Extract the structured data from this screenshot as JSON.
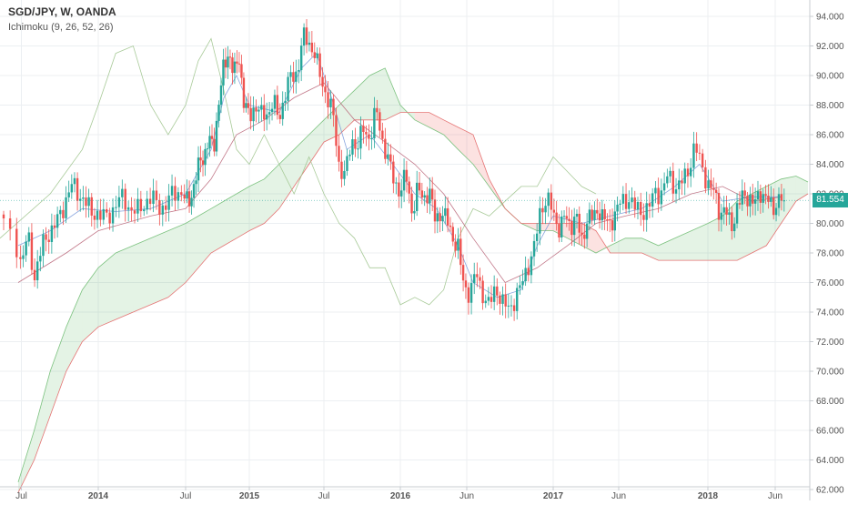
{
  "chart_data": {
    "type": "candlestick",
    "symbol": "SGD/JPY, W, OANDA",
    "indicator": "Ichimoku (9, 26, 52, 26)",
    "last_price": "81.554",
    "y_axis": {
      "range": [
        61.5,
        94.5
      ],
      "ticks": [
        "62.000",
        "64.000",
        "66.000",
        "68.000",
        "70.000",
        "72.000",
        "74.000",
        "76.000",
        "78.000",
        "80.000",
        "82.000",
        "84.000",
        "86.000",
        "88.000",
        "90.000",
        "92.000",
        "94.000"
      ]
    },
    "x_axis": {
      "labels": [
        "Jul",
        "2014",
        "Jul",
        "2015",
        "Jul",
        "2016",
        "Jun",
        "2017",
        "Jun",
        "2018",
        "Jun"
      ],
      "bold_labels": [
        "2014",
        "2015",
        "2016",
        "2017",
        "2018"
      ]
    },
    "close_path": [
      [
        2013.48,
        79.0
      ],
      [
        2013.52,
        77.0
      ],
      [
        2013.56,
        79.5
      ],
      [
        2013.6,
        76.5
      ],
      [
        2013.66,
        78.5
      ],
      [
        2013.72,
        80.0
      ],
      [
        2013.78,
        81.0
      ],
      [
        2013.84,
        82.5
      ],
      [
        2013.9,
        82.0
      ],
      [
        2013.96,
        80.5
      ],
      [
        2014.02,
        80.5
      ],
      [
        2014.08,
        81.0
      ],
      [
        2014.14,
        81.5
      ],
      [
        2014.2,
        81.0
      ],
      [
        2014.26,
        81.2
      ],
      [
        2014.32,
        81.5
      ],
      [
        2014.38,
        81.3
      ],
      [
        2014.42,
        81.8
      ],
      [
        2014.48,
        82.0
      ],
      [
        2014.52,
        81.5
      ],
      [
        2014.58,
        83.0
      ],
      [
        2014.64,
        84.5
      ],
      [
        2014.68,
        86.0
      ],
      [
        2014.72,
        85.0
      ],
      [
        2014.76,
        88.0
      ],
      [
        2014.8,
        90.5
      ],
      [
        2014.84,
        92.0
      ],
      [
        2014.88,
        90.0
      ],
      [
        2014.92,
        91.0
      ],
      [
        2014.96,
        88.0
      ],
      [
        2015.0,
        87.5
      ],
      [
        2015.04,
        88.0
      ],
      [
        2015.08,
        87.0
      ],
      [
        2015.12,
        87.5
      ],
      [
        2015.16,
        88.5
      ],
      [
        2015.2,
        87.0
      ],
      [
        2015.24,
        88.5
      ],
      [
        2015.28,
        90.0
      ],
      [
        2015.32,
        90.5
      ],
      [
        2015.36,
        92.5
      ],
      [
        2015.4,
        92.0
      ],
      [
        2015.44,
        91.5
      ],
      [
        2015.48,
        90.0
      ],
      [
        2015.52,
        88.5
      ],
      [
        2015.56,
        87.0
      ],
      [
        2015.6,
        84.0
      ],
      [
        2015.64,
        83.5
      ],
      [
        2015.68,
        85.5
      ],
      [
        2015.72,
        85.0
      ],
      [
        2015.76,
        86.5
      ],
      [
        2015.8,
        86.0
      ],
      [
        2015.84,
        87.5
      ],
      [
        2015.88,
        85.5
      ],
      [
        2015.92,
        84.5
      ],
      [
        2015.96,
        83.0
      ],
      [
        2016.0,
        82.0
      ],
      [
        2016.04,
        83.0
      ],
      [
        2016.08,
        81.0
      ],
      [
        2016.12,
        82.5
      ],
      [
        2016.16,
        81.5
      ],
      [
        2016.2,
        82.0
      ],
      [
        2016.24,
        80.5
      ],
      [
        2016.28,
        81.0
      ],
      [
        2016.32,
        80.0
      ],
      [
        2016.36,
        79.0
      ],
      [
        2016.4,
        78.5
      ],
      [
        2016.44,
        76.0
      ],
      [
        2016.48,
        75.0
      ],
      [
        2016.52,
        76.5
      ],
      [
        2016.56,
        75.5
      ],
      [
        2016.6,
        74.5
      ],
      [
        2016.64,
        75.5
      ],
      [
        2016.68,
        74.5
      ],
      [
        2016.72,
        74.5
      ],
      [
        2016.76,
        75.0
      ],
      [
        2016.8,
        75.5
      ],
      [
        2016.84,
        77.0
      ],
      [
        2016.88,
        78.5
      ],
      [
        2016.92,
        81.0
      ],
      [
        2016.96,
        81.5
      ],
      [
        2017.0,
        80.5
      ],
      [
        2017.04,
        80.0
      ],
      [
        2017.08,
        80.5
      ],
      [
        2017.12,
        79.5
      ],
      [
        2017.16,
        80.5
      ],
      [
        2017.2,
        79.0
      ],
      [
        2017.24,
        80.5
      ],
      [
        2017.28,
        80.0
      ],
      [
        2017.32,
        81.0
      ],
      [
        2017.36,
        80.5
      ],
      [
        2017.4,
        80.0
      ],
      [
        2017.44,
        80.5
      ],
      [
        2017.48,
        81.5
      ],
      [
        2017.52,
        82.0
      ],
      [
        2017.56,
        81.0
      ],
      [
        2017.6,
        80.5
      ],
      [
        2017.64,
        81.0
      ],
      [
        2017.68,
        82.5
      ],
      [
        2017.72,
        82.0
      ],
      [
        2017.76,
        83.0
      ],
      [
        2017.8,
        82.5
      ],
      [
        2017.84,
        83.0
      ],
      [
        2017.88,
        83.5
      ],
      [
        2017.92,
        85.0
      ],
      [
        2017.96,
        84.0
      ],
      [
        2018.0,
        83.0
      ],
      [
        2018.04,
        82.0
      ],
      [
        2018.08,
        80.5
      ],
      [
        2018.12,
        81.0
      ],
      [
        2018.16,
        80.0
      ],
      [
        2018.2,
        81.0
      ],
      [
        2018.24,
        81.5
      ],
      [
        2018.28,
        82.0
      ],
      [
        2018.32,
        81.5
      ],
      [
        2018.36,
        82.0
      ],
      [
        2018.4,
        81.5
      ],
      [
        2018.44,
        81.0
      ],
      [
        2018.48,
        82.0
      ],
      [
        2018.52,
        81.554
      ]
    ],
    "cloud": {
      "span_a": [
        [
          2013.5,
          62.5
        ],
        [
          2013.6,
          66.0
        ],
        [
          2013.7,
          70.0
        ],
        [
          2013.8,
          73.0
        ],
        [
          2013.9,
          75.5
        ],
        [
          2014.0,
          77.0
        ],
        [
          2014.1,
          78.0
        ],
        [
          2014.2,
          78.5
        ],
        [
          2014.3,
          79.0
        ],
        [
          2014.4,
          79.5
        ],
        [
          2014.5,
          80.0
        ],
        [
          2014.6,
          80.5
        ],
        [
          2014.7,
          81.0
        ],
        [
          2014.8,
          81.5
        ],
        [
          2014.9,
          82.0
        ],
        [
          2015.0,
          82.5
        ],
        [
          2015.1,
          83.0
        ],
        [
          2015.2,
          84.0
        ],
        [
          2015.3,
          85.0
        ],
        [
          2015.4,
          86.0
        ],
        [
          2015.5,
          87.0
        ],
        [
          2015.6,
          88.0
        ],
        [
          2015.7,
          89.0
        ],
        [
          2015.8,
          90.0
        ],
        [
          2015.9,
          90.5
        ],
        [
          2016.0,
          88.0
        ],
        [
          2016.1,
          87.0
        ],
        [
          2016.2,
          86.5
        ],
        [
          2016.3,
          86.0
        ],
        [
          2016.4,
          85.0
        ],
        [
          2016.5,
          84.0
        ],
        [
          2016.6,
          82.5
        ],
        [
          2016.7,
          81.0
        ],
        [
          2016.8,
          80.0
        ],
        [
          2016.9,
          79.5
        ],
        [
          2017.0,
          79.5
        ],
        [
          2017.1,
          79.0
        ],
        [
          2017.2,
          78.5
        ],
        [
          2017.3,
          78.0
        ],
        [
          2017.4,
          78.5
        ],
        [
          2017.5,
          79.0
        ],
        [
          2017.6,
          79.0
        ],
        [
          2017.7,
          78.5
        ],
        [
          2017.8,
          79.0
        ],
        [
          2017.9,
          79.5
        ],
        [
          2018.0,
          80.0
        ],
        [
          2018.1,
          80.5
        ],
        [
          2018.2,
          81.5
        ],
        [
          2018.3,
          82.0
        ],
        [
          2018.4,
          82.5
        ],
        [
          2018.5,
          83.0
        ],
        [
          2018.6,
          83.2
        ],
        [
          2018.68,
          82.8
        ]
      ],
      "span_b": [
        [
          2013.5,
          61.8
        ],
        [
          2013.6,
          64.0
        ],
        [
          2013.7,
          67.0
        ],
        [
          2013.8,
          70.0
        ],
        [
          2013.9,
          72.0
        ],
        [
          2014.0,
          73.0
        ],
        [
          2014.1,
          73.5
        ],
        [
          2014.2,
          74.0
        ],
        [
          2014.3,
          74.5
        ],
        [
          2014.4,
          75.0
        ],
        [
          2014.5,
          76.0
        ],
        [
          2014.6,
          77.0
        ],
        [
          2014.7,
          78.0
        ],
        [
          2014.8,
          78.5
        ],
        [
          2014.9,
          79.0
        ],
        [
          2015.0,
          79.5
        ],
        [
          2015.1,
          80.0
        ],
        [
          2015.2,
          81.0
        ],
        [
          2015.3,
          82.5
        ],
        [
          2015.4,
          84.0
        ],
        [
          2015.5,
          85.5
        ],
        [
          2015.6,
          86.0
        ],
        [
          2015.7,
          87.0
        ],
        [
          2015.8,
          87.0
        ],
        [
          2015.9,
          87.0
        ],
        [
          2016.0,
          87.5
        ],
        [
          2016.1,
          87.5
        ],
        [
          2016.2,
          87.5
        ],
        [
          2016.3,
          87.0
        ],
        [
          2016.4,
          86.5
        ],
        [
          2016.5,
          86.0
        ],
        [
          2016.6,
          83.0
        ],
        [
          2016.7,
          81.0
        ],
        [
          2016.8,
          80.0
        ],
        [
          2016.9,
          80.0
        ],
        [
          2017.0,
          80.0
        ],
        [
          2017.1,
          80.0
        ],
        [
          2017.2,
          80.0
        ],
        [
          2017.3,
          79.5
        ],
        [
          2017.4,
          78.0
        ],
        [
          2017.5,
          78.0
        ],
        [
          2017.6,
          78.0
        ],
        [
          2017.7,
          77.5
        ],
        [
          2017.8,
          77.5
        ],
        [
          2017.9,
          77.5
        ],
        [
          2018.0,
          77.5
        ],
        [
          2018.1,
          77.5
        ],
        [
          2018.2,
          77.5
        ],
        [
          2018.3,
          78.0
        ],
        [
          2018.4,
          78.5
        ],
        [
          2018.5,
          80.0
        ],
        [
          2018.6,
          81.5
        ],
        [
          2018.68,
          82.0
        ]
      ]
    },
    "tenkan": [
      [
        2013.5,
        78.5
      ],
      [
        2013.7,
        79.5
      ],
      [
        2013.9,
        81.0
      ],
      [
        2014.1,
        80.8
      ],
      [
        2014.3,
        81.0
      ],
      [
        2014.5,
        82.0
      ],
      [
        2014.7,
        85.0
      ],
      [
        2014.8,
        88.5
      ],
      [
        2014.9,
        90.0
      ],
      [
        2015.0,
        88.0
      ],
      [
        2015.2,
        87.5
      ],
      [
        2015.35,
        90.5
      ],
      [
        2015.45,
        91.5
      ],
      [
        2015.55,
        88.5
      ],
      [
        2015.65,
        85.0
      ],
      [
        2015.8,
        86.0
      ],
      [
        2015.95,
        84.0
      ],
      [
        2016.1,
        82.0
      ],
      [
        2016.25,
        81.0
      ],
      [
        2016.4,
        78.5
      ],
      [
        2016.5,
        76.0
      ],
      [
        2016.65,
        75.0
      ],
      [
        2016.8,
        75.5
      ],
      [
        2016.9,
        78.5
      ],
      [
        2017.0,
        80.5
      ],
      [
        2017.2,
        80.0
      ],
      [
        2017.4,
        80.5
      ],
      [
        2017.6,
        81.0
      ],
      [
        2017.8,
        82.5
      ],
      [
        2017.95,
        84.0
      ],
      [
        2018.1,
        81.5
      ],
      [
        2018.3,
        81.8
      ],
      [
        2018.5,
        81.8
      ]
    ],
    "kijun": [
      [
        2013.5,
        76.0
      ],
      [
        2013.8,
        78.0
      ],
      [
        2014.0,
        79.5
      ],
      [
        2014.3,
        80.5
      ],
      [
        2014.5,
        81.0
      ],
      [
        2014.7,
        83.0
      ],
      [
        2014.9,
        86.0
      ],
      [
        2015.1,
        87.0
      ],
      [
        2015.3,
        88.5
      ],
      [
        2015.5,
        89.5
      ],
      [
        2015.7,
        87.0
      ],
      [
        2015.9,
        85.5
      ],
      [
        2016.1,
        84.0
      ],
      [
        2016.3,
        82.0
      ],
      [
        2016.5,
        79.0
      ],
      [
        2016.7,
        76.0
      ],
      [
        2016.9,
        77.0
      ],
      [
        2017.1,
        78.5
      ],
      [
        2017.3,
        80.0
      ],
      [
        2017.5,
        80.5
      ],
      [
        2017.7,
        81.0
      ],
      [
        2017.9,
        82.0
      ],
      [
        2018.1,
        82.5
      ],
      [
        2018.3,
        81.5
      ],
      [
        2018.5,
        81.8
      ]
    ],
    "chikou": [
      [
        2013.45,
        79.0
      ],
      [
        2013.7,
        82.0
      ],
      [
        2013.9,
        85.0
      ],
      [
        2014.0,
        88.0
      ],
      [
        2014.1,
        91.5
      ],
      [
        2014.2,
        92.0
      ],
      [
        2014.3,
        88.0
      ],
      [
        2014.4,
        86.0
      ],
      [
        2014.5,
        88.0
      ],
      [
        2014.6,
        91.0
      ],
      [
        2014.7,
        92.5
      ],
      [
        2014.8,
        89.0
      ],
      [
        2014.9,
        85.0
      ],
      [
        2015.0,
        84.0
      ],
      [
        2015.1,
        86.0
      ],
      [
        2015.2,
        84.0
      ],
      [
        2015.3,
        82.0
      ],
      [
        2015.4,
        84.5
      ],
      [
        2015.5,
        82.0
      ],
      [
        2015.6,
        80.0
      ],
      [
        2015.7,
        79.0
      ],
      [
        2015.8,
        77.0
      ],
      [
        2015.9,
        77.0
      ],
      [
        2016.0,
        74.5
      ],
      [
        2016.1,
        75.0
      ],
      [
        2016.2,
        74.5
      ],
      [
        2016.3,
        75.5
      ],
      [
        2016.4,
        79.0
      ],
      [
        2016.5,
        81.0
      ],
      [
        2016.6,
        80.5
      ],
      [
        2016.7,
        81.5
      ],
      [
        2016.8,
        82.5
      ],
      [
        2016.9,
        82.5
      ],
      [
        2017.0,
        84.5
      ],
      [
        2017.1,
        83.5
      ],
      [
        2017.2,
        82.5
      ],
      [
        2017.3,
        82.0
      ]
    ]
  }
}
